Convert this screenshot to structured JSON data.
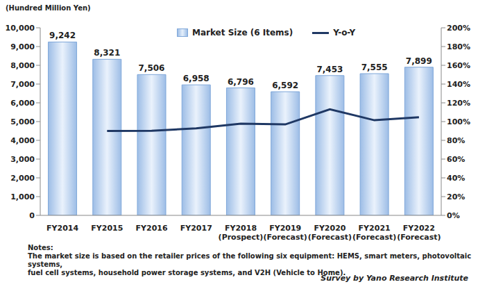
{
  "chart_data": {
    "type": "bar",
    "y_label": "(Hundred Million Yen)",
    "categories": [
      "FY2014",
      "FY2015",
      "FY2016",
      "FY2017",
      "FY2018 (Prospect)",
      "FY2019 (Forecast)",
      "FY2020 (Forecast)",
      "FY2021 (Forecast)",
      "FY2022 (Forecast)"
    ],
    "series": [
      {
        "name": "Market Size (6 Items)",
        "type": "bar",
        "color": "#7fa7d9",
        "data_labels": true,
        "values": [
          9242,
          8321,
          7506,
          6958,
          6796,
          6592,
          7453,
          7555,
          7899
        ],
        "value_labels": [
          "9,242",
          "8,321",
          "7,506",
          "6,958",
          "6,796",
          "6,592",
          "7,453",
          "7,555",
          "7,899"
        ]
      },
      {
        "name": "Y-o-Y",
        "type": "line",
        "axis": "y2",
        "color": "#1f3864",
        "marker": "none",
        "line_style": "solid",
        "values": [
          null,
          90.0,
          90.2,
          92.7,
          97.7,
          97.0,
          113.1,
          101.4,
          104.6
        ]
      }
    ],
    "ylim": [
      0,
      10000
    ],
    "yticks": [
      0,
      {
        "value": 1000,
        "label": "1,000"
      },
      {
        "value": 2000,
        "label": "2,000"
      },
      {
        "value": 3000,
        "label": "3,000"
      },
      {
        "value": 4000,
        "label": "4,000"
      },
      {
        "value": 5000,
        "label": "5,000"
      },
      {
        "value": 6000,
        "label": "6,000"
      },
      {
        "value": 7000,
        "label": "7,000"
      },
      {
        "value": 8000,
        "label": "8,000"
      },
      {
        "value": 9000,
        "label": "9,000"
      },
      {
        "value": 10000,
        "label": "10,000"
      }
    ],
    "y2lim": [
      0,
      200
    ],
    "y2ticks": [
      {
        "value": 0,
        "label": "0%"
      },
      {
        "value": 20,
        "label": "20%"
      },
      {
        "value": 40,
        "label": "40%"
      },
      {
        "value": 60,
        "label": "60%"
      },
      {
        "value": 80,
        "label": "80%"
      },
      {
        "value": 100,
        "label": "100%"
      },
      {
        "value": 120,
        "label": "120%"
      },
      {
        "value": 140,
        "label": "140%"
      },
      {
        "value": 160,
        "label": "160%"
      },
      {
        "value": 180,
        "label": "180%"
      },
      {
        "value": 200,
        "label": "200%"
      }
    ],
    "grid": false,
    "legend": "top",
    "annotations": [
      "Notes:",
      "The market size is based on the retailer prices of the following six equipment: HEMS, smart meters, photovoltaic systems,",
      "fuel cell systems, household power storage systems, and V2H (Vehicle to Home)."
    ],
    "source": "Survey by Yano Research Institute"
  }
}
